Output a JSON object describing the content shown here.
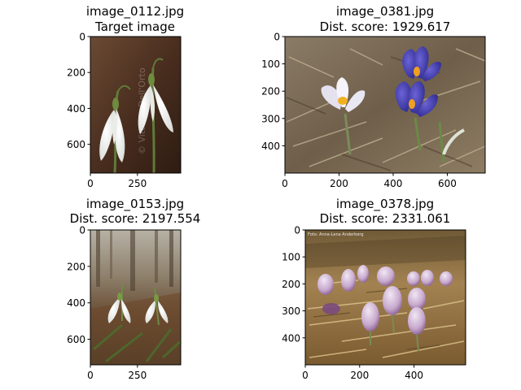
{
  "panels": [
    {
      "id": "target",
      "filename": "image_0112.jpg",
      "subtitle": "Target image",
      "image_width": 480,
      "image_height": 760,
      "x_ticks": [
        0,
        250
      ],
      "y_ticks": [
        0,
        200,
        400,
        600
      ],
      "photo": {
        "subject": "white snowdrop flowers",
        "watermark": "© Vittorio Dell'Orto",
        "background": "#5a3826"
      }
    },
    {
      "id": "match-1",
      "filename": "image_0381.jpg",
      "subtitle": "Dist. score: 1929.617",
      "image_width": 740,
      "image_height": 500,
      "x_ticks": [
        0,
        200,
        400,
        600
      ],
      "y_ticks": [
        0,
        100,
        200,
        300,
        400
      ],
      "photo": {
        "subject": "white and purple crocuses in dry grass",
        "background": "#7a6a55"
      }
    },
    {
      "id": "match-2",
      "filename": "image_0153.jpg",
      "subtitle": "Dist. score: 2197.554",
      "image_width": 480,
      "image_height": 740,
      "x_ticks": [
        0,
        250
      ],
      "y_ticks": [
        0,
        200,
        400,
        600
      ],
      "photo": {
        "subject": "snowdrops in a forest floor",
        "background": "#5b4a35"
      }
    },
    {
      "id": "match-3",
      "filename": "image_0378.jpg",
      "subtitle": "Dist. score: 2331.061",
      "image_width": 590,
      "image_height": 500,
      "x_ticks": [
        0,
        200,
        400
      ],
      "y_ticks": [
        0,
        100,
        200,
        300,
        400
      ],
      "photo": {
        "subject": "pale purple crocuses in straw",
        "credit": "Foto: Anna-Lena Anderberg",
        "background": "#8c6b3e"
      }
    }
  ]
}
